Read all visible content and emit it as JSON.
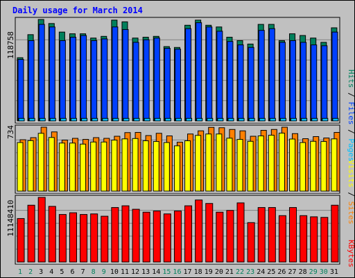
{
  "title": "Daily usage for March 2014",
  "colors": {
    "background": "#c0c0c0",
    "title": "#0000ff",
    "hits": "#00805c",
    "files": "#0040ff",
    "pages": "#00c0ff",
    "visits": "#ffff00",
    "sites": "#ff8000",
    "kbytes": "#ff0000",
    "weekday_tick": "#000000",
    "weekend_tick": "#00805c"
  },
  "labels": {
    "hits_max": "118758",
    "visits_max": "734",
    "kbytes_max": "11148410",
    "legend_pages": "Pages",
    "legend_files": "Files",
    "legend_hits": "Hits",
    "legend_sites": "Sites",
    "legend_visits": "Visits",
    "legend_kbytes": "KBytes",
    "sep": "/"
  },
  "chart_data": [
    {
      "type": "bar",
      "title": "Daily usage for March 2014",
      "ylabel": "118758",
      "ylim": [
        0,
        118758
      ],
      "categories": [
        "1",
        "2",
        "3",
        "4",
        "5",
        "6",
        "7",
        "8",
        "9",
        "10",
        "11",
        "12",
        "13",
        "14",
        "15",
        "16",
        "17",
        "18",
        "19",
        "20",
        "21",
        "22",
        "23",
        "24",
        "25",
        "26",
        "27",
        "28",
        "29",
        "30",
        "31"
      ],
      "weekend_days": [
        "1",
        "2",
        "8",
        "9",
        "15",
        "16",
        "22",
        "23",
        "29",
        "30"
      ],
      "series": [
        {
          "name": "Hits",
          "values": [
            74000,
            101000,
            118758,
            114000,
            104000,
            102000,
            102000,
            97000,
            99000,
            118000,
            116000,
            97000,
            98000,
            99000,
            87000,
            86000,
            112000,
            118000,
            112000,
            110000,
            98000,
            94000,
            90000,
            113000,
            113000,
            94000,
            102000,
            100000,
            97000,
            92000,
            109000
          ]
        },
        {
          "name": "Files",
          "values": [
            72000,
            94000,
            113000,
            110000,
            94000,
            98000,
            100000,
            94000,
            96000,
            110000,
            107000,
            92000,
            95000,
            97000,
            85000,
            84000,
            108000,
            115000,
            110000,
            105000,
            93000,
            89000,
            86000,
            106000,
            108000,
            92000,
            94000,
            92000,
            89000,
            88000,
            104000
          ]
        },
        {
          "name": "Pages",
          "values": [
            3000,
            3000,
            3000,
            3000,
            3000,
            3000,
            3000,
            3000,
            3000,
            3000,
            3000,
            3000,
            3000,
            3000,
            3000,
            3000,
            3000,
            3000,
            3000,
            3000,
            3000,
            3000,
            3000,
            3000,
            3000,
            3000,
            3000,
            3000,
            3000,
            3000,
            3000
          ]
        }
      ]
    },
    {
      "type": "bar",
      "ylabel": "734",
      "ylim": [
        0,
        734
      ],
      "categories": [
        "1",
        "2",
        "3",
        "4",
        "5",
        "6",
        "7",
        "8",
        "9",
        "10",
        "11",
        "12",
        "13",
        "14",
        "15",
        "16",
        "17",
        "18",
        "19",
        "20",
        "21",
        "22",
        "23",
        "24",
        "25",
        "26",
        "27",
        "28",
        "29",
        "30",
        "31"
      ],
      "series": [
        {
          "name": "Sites",
          "values": [
            590,
            614,
            734,
            680,
            586,
            606,
            594,
            614,
            606,
            630,
            672,
            674,
            638,
            664,
            634,
            562,
            656,
            692,
            732,
            728,
            708,
            692,
            630,
            698,
            708,
            734,
            660,
            602,
            626,
            610,
            674
          ]
        },
        {
          "name": "Visits",
          "values": [
            558,
            580,
            664,
            616,
            552,
            552,
            540,
            564,
            564,
            586,
            600,
            604,
            578,
            570,
            558,
            520,
            578,
            640,
            656,
            656,
            608,
            594,
            572,
            634,
            642,
            666,
            598,
            558,
            572,
            570,
            600
          ]
        }
      ]
    },
    {
      "type": "bar",
      "ylabel": "11148410",
      "ylim": [
        0,
        11148410
      ],
      "categories": [
        "1",
        "2",
        "3",
        "4",
        "5",
        "6",
        "7",
        "8",
        "9",
        "10",
        "11",
        "12",
        "13",
        "14",
        "15",
        "16",
        "17",
        "18",
        "19",
        "20",
        "21",
        "22",
        "23",
        "24",
        "25",
        "26",
        "27",
        "28",
        "29",
        "30",
        "31"
      ],
      "series": [
        {
          "name": "KBytes",
          "values": [
            7500000,
            9800000,
            11148410,
            9600000,
            8200000,
            8500000,
            8200000,
            8300000,
            7900000,
            9400000,
            9700000,
            9100000,
            8600000,
            8800000,
            8300000,
            8800000,
            9700000,
            10700000,
            10100000,
            8600000,
            8900000,
            10200000,
            6800000,
            9400000,
            9400000,
            8000000,
            9400000,
            8000000,
            7800000,
            7700000,
            9800000
          ]
        }
      ]
    }
  ]
}
